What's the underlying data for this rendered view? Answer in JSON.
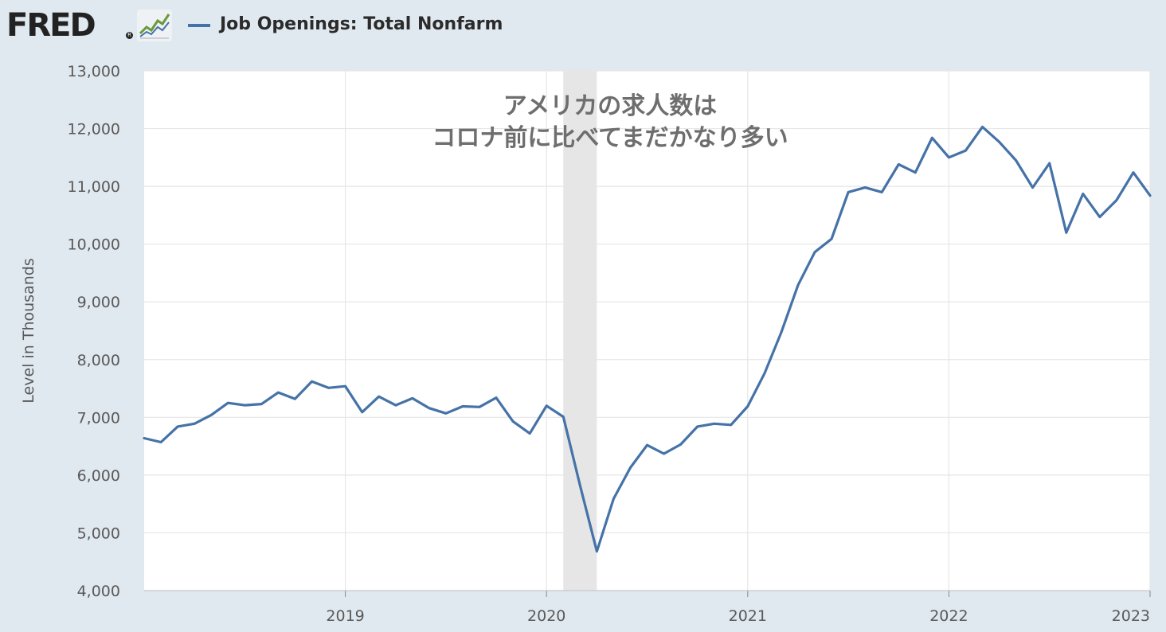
{
  "header": {
    "logo_text": "FRED",
    "logo_reg": "R",
    "series_title": "Job Openings: Total Nonfarm",
    "graph_icon": "line-chart-icon"
  },
  "chart_data": {
    "type": "line",
    "title": "",
    "ylabel": "Level in Thousands",
    "xlabel": "",
    "ylim": [
      4000,
      13000
    ],
    "yticks": [
      4000,
      5000,
      6000,
      7000,
      8000,
      9000,
      10000,
      11000,
      12000,
      13000
    ],
    "ytick_labels": [
      "4,000",
      "5,000",
      "6,000",
      "7,000",
      "8,000",
      "9,000",
      "10,000",
      "11,000",
      "12,000",
      "13,000"
    ],
    "xlim": [
      "2018-01",
      "2023-01"
    ],
    "xticks": [
      "2019-01",
      "2020-01",
      "2021-01",
      "2022-01",
      "2023-01"
    ],
    "xtick_labels": [
      "2019",
      "2020",
      "2021",
      "2022",
      "2023"
    ],
    "grid": true,
    "annotation": {
      "lines": [
        "アメリカの求人数は",
        "コロナ前に比べてまだかなり多い"
      ]
    },
    "recession": {
      "start": "2020-02",
      "end": "2020-04"
    },
    "series": [
      {
        "name": "Job Openings: Total Nonfarm",
        "color": "#4572a7",
        "x": [
          "2018-01",
          "2018-02",
          "2018-03",
          "2018-04",
          "2018-05",
          "2018-06",
          "2018-07",
          "2018-08",
          "2018-09",
          "2018-10",
          "2018-11",
          "2018-12",
          "2019-01",
          "2019-02",
          "2019-03",
          "2019-04",
          "2019-05",
          "2019-06",
          "2019-07",
          "2019-08",
          "2019-09",
          "2019-10",
          "2019-11",
          "2019-12",
          "2020-01",
          "2020-02",
          "2020-03",
          "2020-04",
          "2020-05",
          "2020-06",
          "2020-07",
          "2020-08",
          "2020-09",
          "2020-10",
          "2020-11",
          "2020-12",
          "2021-01",
          "2021-02",
          "2021-03",
          "2021-04",
          "2021-05",
          "2021-06",
          "2021-07",
          "2021-08",
          "2021-09",
          "2021-10",
          "2021-11",
          "2021-12",
          "2022-01",
          "2022-02",
          "2022-03",
          "2022-04",
          "2022-05",
          "2022-06",
          "2022-07",
          "2022-08",
          "2022-09",
          "2022-10",
          "2022-11",
          "2022-12",
          "2023-01"
        ],
        "values": [
          6640,
          6570,
          6840,
          6890,
          7040,
          7250,
          7210,
          7230,
          7430,
          7320,
          7620,
          7510,
          7540,
          7090,
          7360,
          7210,
          7330,
          7160,
          7070,
          7190,
          7180,
          7340,
          6930,
          6720,
          7200,
          7010,
          5820,
          4680,
          5590,
          6130,
          6520,
          6370,
          6530,
          6840,
          6890,
          6870,
          7190,
          7760,
          8470,
          9290,
          9860,
          10090,
          10900,
          10980,
          10900,
          11380,
          11240,
          11840,
          11500,
          11620,
          12030,
          11770,
          11450,
          10980,
          11400,
          10200,
          10870,
          10470,
          10760,
          11240,
          10840
        ]
      }
    ]
  }
}
